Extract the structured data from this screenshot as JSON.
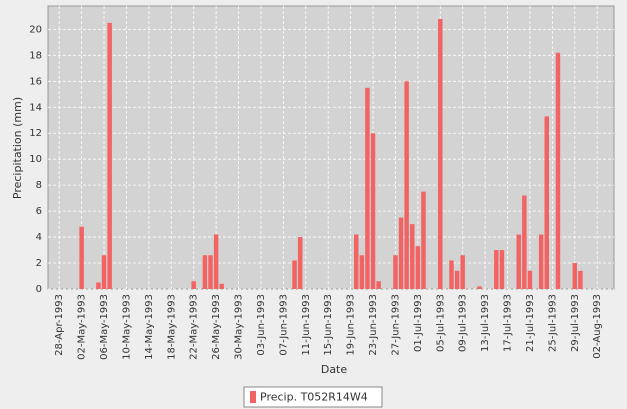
{
  "chart_data": {
    "type": "bar",
    "x_label": "Date",
    "y_label": "Precipitation (mm)",
    "x": [
      "1993-05-02",
      "1993-05-05",
      "1993-05-06",
      "1993-05-07",
      "1993-05-22",
      "1993-05-24",
      "1993-05-25",
      "1993-05-26",
      "1993-05-27",
      "1993-06-09",
      "1993-06-10",
      "1993-06-20",
      "1993-06-21",
      "1993-06-22",
      "1993-06-23",
      "1993-06-24",
      "1993-06-27",
      "1993-06-28",
      "1993-06-29",
      "1993-06-30",
      "1993-07-01",
      "1993-07-02",
      "1993-07-05",
      "1993-07-07",
      "1993-07-08",
      "1993-07-09",
      "1993-07-12",
      "1993-07-15",
      "1993-07-16",
      "1993-07-19",
      "1993-07-20",
      "1993-07-21",
      "1993-07-23",
      "1993-07-24",
      "1993-07-26",
      "1993-07-29",
      "1993-07-30"
    ],
    "series": [
      {
        "name": "Precip. T052R14W4",
        "color": "#f26464",
        "values": [
          4.8,
          0.5,
          2.6,
          20.5,
          0.6,
          2.6,
          2.6,
          4.2,
          0.4,
          2.2,
          4.0,
          4.2,
          2.6,
          15.5,
          12.0,
          0.6,
          2.6,
          5.5,
          16.0,
          5.0,
          3.3,
          7.5,
          20.8,
          2.2,
          1.4,
          2.6,
          0.2,
          3.0,
          3.0,
          4.2,
          7.2,
          1.4,
          4.2,
          13.3,
          18.2,
          2.0,
          1.4
        ]
      }
    ],
    "xlim": [
      "1993-04-26",
      "1993-08-05"
    ],
    "xticks": [
      {
        "value": "1993-04-28",
        "label": "28-Apr-1993"
      },
      {
        "value": "1993-05-02",
        "label": "02-May-1993"
      },
      {
        "value": "1993-05-06",
        "label": "06-May-1993"
      },
      {
        "value": "1993-05-10",
        "label": "10-May-1993"
      },
      {
        "value": "1993-05-14",
        "label": "14-May-1993"
      },
      {
        "value": "1993-05-18",
        "label": "18-May-1993"
      },
      {
        "value": "1993-05-22",
        "label": "22-May-1993"
      },
      {
        "value": "1993-05-26",
        "label": "26-May-1993"
      },
      {
        "value": "1993-05-30",
        "label": "30-May-1993"
      },
      {
        "value": "1993-06-03",
        "label": "03-Jun-1993"
      },
      {
        "value": "1993-06-07",
        "label": "07-Jun-1993"
      },
      {
        "value": "1993-06-11",
        "label": "11-Jun-1993"
      },
      {
        "value": "1993-06-15",
        "label": "15-Jun-1993"
      },
      {
        "value": "1993-06-19",
        "label": "19-Jun-1993"
      },
      {
        "value": "1993-06-23",
        "label": "23-Jun-1993"
      },
      {
        "value": "1993-06-27",
        "label": "27-Jun-1993"
      },
      {
        "value": "1993-07-01",
        "label": "01-Jul-1993"
      },
      {
        "value": "1993-07-05",
        "label": "05-Jul-1993"
      },
      {
        "value": "1993-07-09",
        "label": "09-Jul-1993"
      },
      {
        "value": "1993-07-13",
        "label": "13-Jul-1993"
      },
      {
        "value": "1993-07-17",
        "label": "17-Jul-1993"
      },
      {
        "value": "1993-07-21",
        "label": "21-Jul-1993"
      },
      {
        "value": "1993-07-25",
        "label": "25-Jul-1993"
      },
      {
        "value": "1993-07-29",
        "label": "29-Jul-1993"
      },
      {
        "value": "1993-08-02",
        "label": "02-Aug-1993"
      }
    ],
    "ylim": [
      0,
      21.8
    ],
    "yticks": [
      0,
      2,
      4,
      6,
      8,
      10,
      12,
      14,
      16,
      18,
      20
    ],
    "grid": true
  }
}
